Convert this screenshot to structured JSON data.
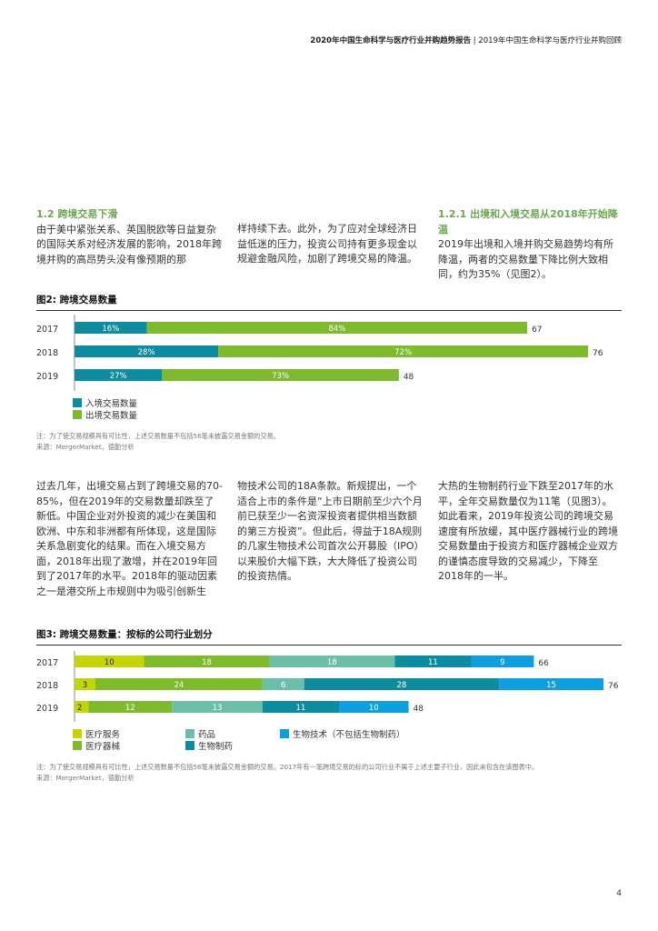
{
  "header": {
    "bold": "2020年中国生命科学与医疗行业并购趋势报告",
    "rest": " | 2019年中国生命科学与医疗行业并购回顾"
  },
  "section1": {
    "heading": "1.2 跨境交易下滑",
    "col1": "由于美中紧张关系、英国脱欧等日益复杂的国际关系对经济发展的影响，2018年跨境并购的高昂势头没有像预期的那",
    "col2": "样持续下去。此外，为了应对全球经济日益低迷的压力，投资公司持有更多现金以规避金融风险，加剧了跨境交易的降温。",
    "col3_heading": "1.2.1 出境和入境交易从2018年开始降温",
    "col3": "2019年出境和入境并购交易趋势均有所降温，两者的交易数量下降比例大致相同，约为35%（见图2）。"
  },
  "figure2": {
    "title": "图2: 跨境交易数量",
    "note": "注：为了使交易规模具有可比性，上述交易数量不包括56笔未披露交易金额的交易。",
    "source": "来源：MergerMarket，德勤分析",
    "legend": [
      "入境交易数量",
      "出境交易数量"
    ]
  },
  "section2": {
    "col1": "过去几年，出境交易占到了跨境交易的70-85%，但在2019年的交易数量却跌至了新低。中国企业对外投资的减少在美国和欧洲、中东和非洲都有所体现，这是国际关系急剧变化的结果。而在入境交易方面，2018年出现了激增，并在2019年回到了2017年的水平。2018年的驱动因素之一是港交所上市规则中为吸引创新生",
    "col2": "物技术公司的18A条款。新规提出，一个适合上市的条件是“上市日期前至少六个月前已获至少一名资深投资者提供相当数额的第三方投资”。但此后，得益于18A规则的几家生物技术公司首次公开募股（IPO）以来股价大幅下跌，大大降低了投资公司的投资热情。",
    "col3": "大热的生物制药行业下跌至2017年的水平，全年交易数量仅为11笔（见图3）。如此看来，2019年投资公司的跨境交易速度有所放缓，其中医疗器械行业的跨境交易数量由于投资方和医疗器械企业双方的谨慎态度导致的交易减少，下降至2018年的一半。"
  },
  "figure3": {
    "title": "图3: 跨境交易数量：按标的公司行业划分",
    "note": "注：为了使交易规模具有可比性，上述交易数量不包括56笔未披露交易金额的交易。2017年有一笔跨境交易的标的公司行业不属于上述主要子行业，因此未包含在该图表中。",
    "source": "来源：MergerMarket，德勤分析",
    "legend": [
      "医疗服务",
      "药品",
      "生物技术（不包括生物制药）",
      "医疗器械",
      "生物制药"
    ]
  },
  "page_number": "4",
  "colors": {
    "green": "#7dbb2a",
    "teal": "#0b8c9f",
    "lime": "#c3d600",
    "mint": "#6bbfa8",
    "blue": "#0da0e0",
    "heading_green": "#6aa84f"
  },
  "chart_data": [
    {
      "type": "bar",
      "orientation": "horizontal-stacked",
      "categories": [
        "2017",
        "2018",
        "2019"
      ],
      "series": [
        {
          "name": "入境交易数量",
          "color": "#0b8c9f",
          "labels": [
            "16%",
            "28%",
            "27%"
          ]
        },
        {
          "name": "出境交易数量",
          "color": "#7dbb2a",
          "labels": [
            "84%",
            "72%",
            "73%"
          ]
        }
      ],
      "totals": [
        67,
        76,
        48
      ]
    },
    {
      "type": "bar",
      "orientation": "horizontal-stacked",
      "categories": [
        "2017",
        "2018",
        "2019"
      ],
      "series": [
        {
          "name": "医疗服务",
          "color": "#c3d600",
          "values": [
            10,
            3,
            2
          ]
        },
        {
          "name": "医疗器械",
          "color": "#7dbb2a",
          "values": [
            18,
            24,
            12
          ]
        },
        {
          "name": "药品",
          "color": "#6bbfa8",
          "values": [
            18,
            6,
            13
          ]
        },
        {
          "name": "生物制药",
          "color": "#0b8c9f",
          "values": [
            11,
            28,
            11
          ]
        },
        {
          "name": "生物技术（不包括生物制药）",
          "color": "#0da0e0",
          "values": [
            9,
            15,
            10
          ]
        }
      ],
      "totals": [
        66,
        76,
        48
      ]
    }
  ]
}
